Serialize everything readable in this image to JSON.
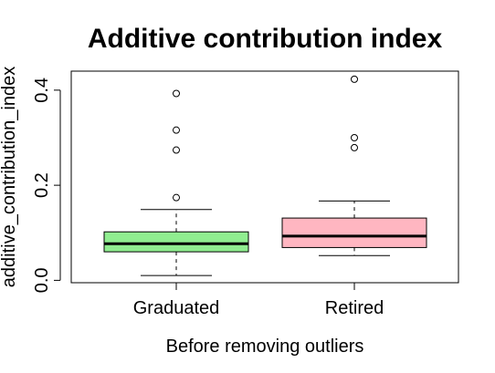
{
  "chart_data": {
    "type": "box",
    "title": "Additive contribution index",
    "xlabel": "Before removing outliers",
    "ylabel": "additive_contribution_index",
    "categories": [
      "Graduated",
      "Retired"
    ],
    "ylim": [
      -0.005,
      0.44
    ],
    "yticks": [
      0.0,
      0.2,
      0.4
    ],
    "ytick_labels": [
      "0.0",
      "0.2",
      "0.4"
    ],
    "grid": false,
    "legend": "none",
    "boxes": [
      {
        "name": "Graduated",
        "whisker_low": 0.01,
        "q1": 0.06,
        "median": 0.077,
        "q3": 0.102,
        "whisker_high": 0.149,
        "outliers": [
          0.174,
          0.274,
          0.316,
          0.393
        ],
        "color": "#90ee90"
      },
      {
        "name": "Retired",
        "whisker_low": 0.052,
        "q1": 0.069,
        "median": 0.093,
        "q3": 0.131,
        "whisker_high": 0.167,
        "outliers": [
          0.279,
          0.3,
          0.423
        ],
        "color": "#ffb6c1"
      }
    ]
  }
}
